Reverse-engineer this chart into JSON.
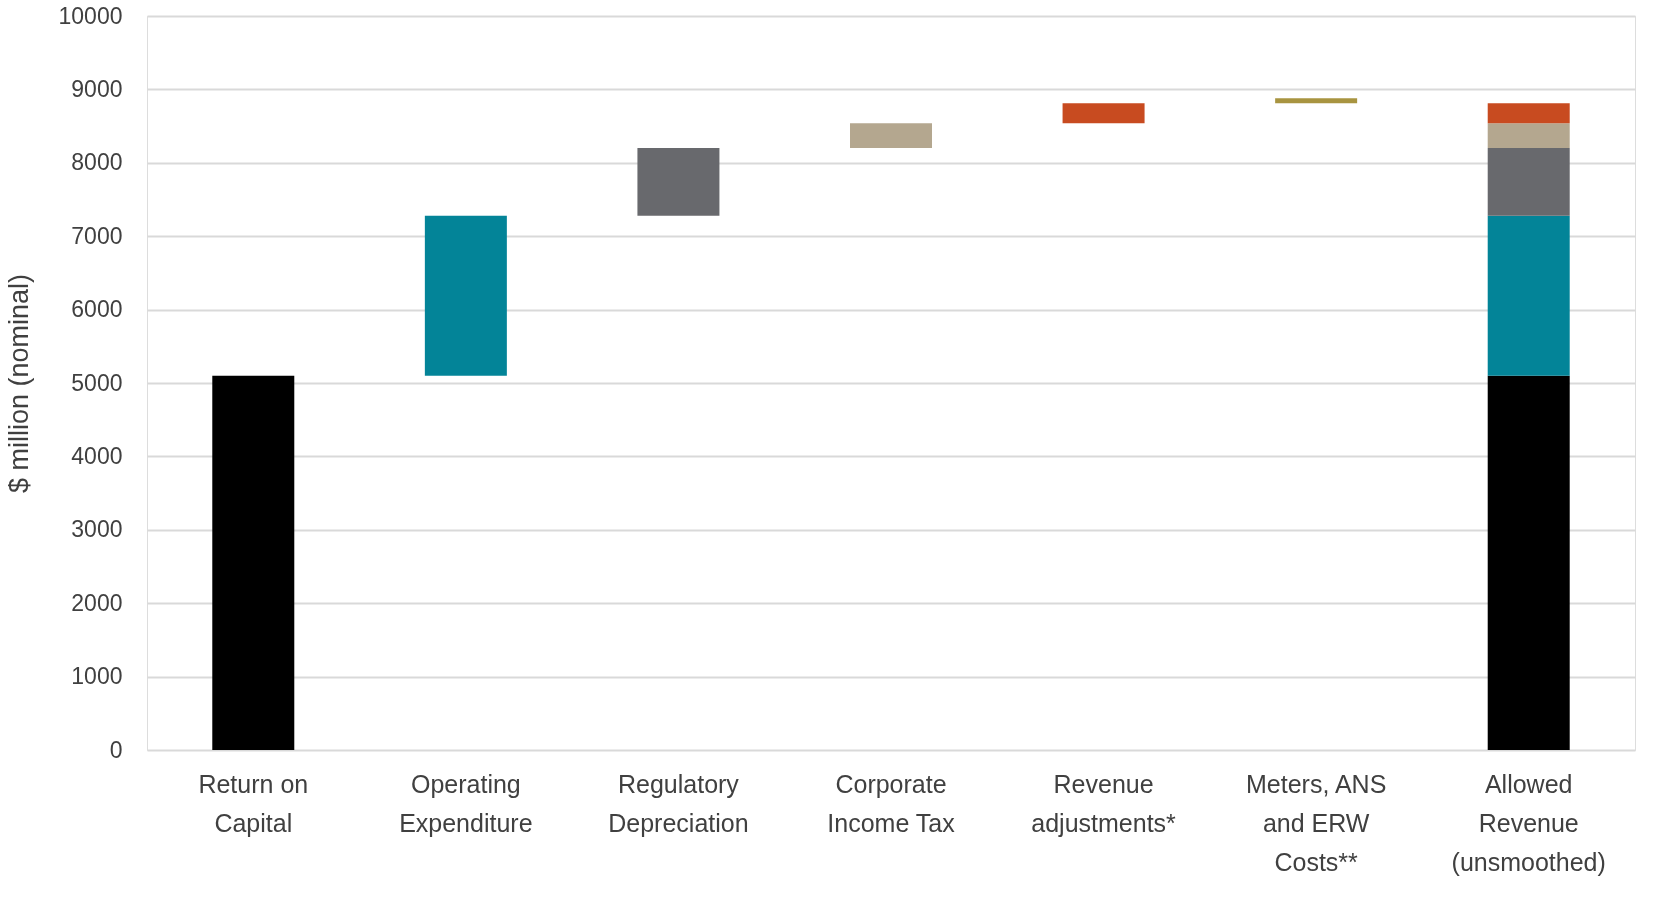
{
  "chart_data": {
    "type": "bar",
    "ylabel": "$ million (nominal)",
    "categories": [
      "Return on Capital",
      "Operating Expenditure",
      "Regulatory Depreciation",
      "Corporate Income Tax",
      "Revenue adjustments*",
      "Meters, ANS and ERW Costs**",
      "Allowed Revenue (unsmoothed)"
    ],
    "series": [
      {
        "color": "#000000",
        "values": [
          5100,
          null,
          null,
          null,
          null,
          null,
          5100
        ],
        "base": [
          0,
          null,
          null,
          null,
          null,
          null,
          0
        ]
      },
      {
        "color": "#038498",
        "values": [
          null,
          2180,
          null,
          null,
          null,
          null,
          2180
        ],
        "base": [
          null,
          5100,
          null,
          null,
          null,
          null,
          5100
        ]
      },
      {
        "color": "#68696d",
        "values": [
          null,
          null,
          920,
          null,
          null,
          null,
          920
        ],
        "base": [
          null,
          null,
          7280,
          null,
          null,
          null,
          7280
        ]
      },
      {
        "color": "#b4a78f",
        "values": [
          null,
          null,
          null,
          340,
          null,
          null,
          340
        ],
        "base": [
          null,
          null,
          null,
          8200,
          null,
          null,
          8200
        ]
      },
      {
        "color": "#c84b20",
        "values": [
          null,
          null,
          null,
          null,
          270,
          null,
          270
        ],
        "base": [
          null,
          null,
          null,
          null,
          8540,
          null,
          8540
        ]
      },
      {
        "color": "#a89440",
        "values": [
          null,
          null,
          null,
          null,
          null,
          70,
          null
        ],
        "base": [
          null,
          null,
          null,
          null,
          null,
          8810,
          null
        ]
      }
    ],
    "ylim": [
      0,
      10000
    ],
    "yticks": [
      0,
      1000,
      2000,
      3000,
      4000,
      5000,
      6000,
      7000,
      8000,
      9000,
      10000
    ],
    "grid": "y"
  }
}
